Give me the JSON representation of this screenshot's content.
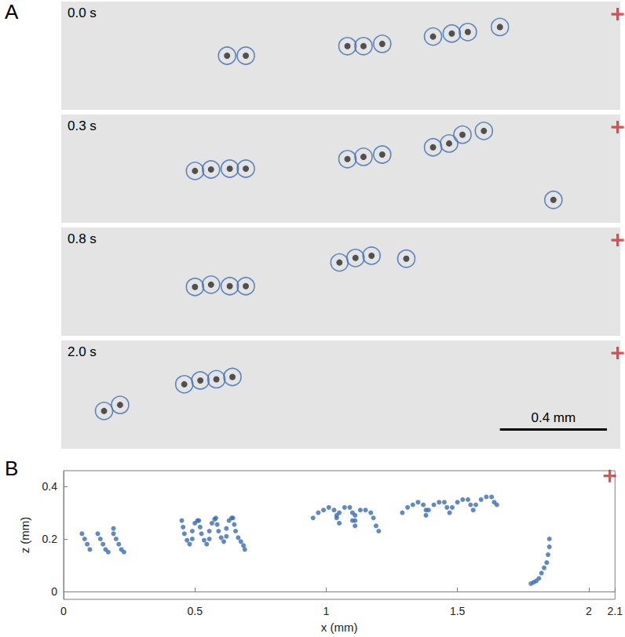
{
  "chart_data": [
    {
      "type": "scatter",
      "panel_label": "A",
      "title": "0.0 s",
      "xlim": [
        0,
        2.09
      ],
      "ylim": [
        0,
        0.43
      ],
      "tick_labels": false,
      "series": [
        {
          "color": "#3b6db3",
          "marker": "ring",
          "x": [
            0.62,
            0.69,
            1.07,
            1.13,
            1.2,
            1.39,
            1.46,
            1.52,
            1.64
          ],
          "values": [
            0.215,
            0.215,
            0.253,
            0.253,
            0.262,
            0.291,
            0.303,
            0.309,
            0.329
          ]
        },
        {
          "color": "#d62728",
          "marker": "cross",
          "x": [
            2.08
          ],
          "values": [
            0.38
          ]
        }
      ]
    },
    {
      "type": "scatter",
      "title": "0.3 s",
      "xlim": [
        0,
        2.09
      ],
      "ylim": [
        0,
        0.43
      ],
      "tick_labels": false,
      "series": [
        {
          "color": "#3b6db3",
          "marker": "ring",
          "x": [
            0.5,
            0.56,
            0.63,
            0.69,
            1.07,
            1.13,
            1.2,
            1.39,
            1.45,
            1.5,
            1.58,
            1.84
          ],
          "values": [
            0.206,
            0.212,
            0.215,
            0.215,
            0.253,
            0.262,
            0.271,
            0.3,
            0.315,
            0.35,
            0.365,
            0.091
          ]
        },
        {
          "color": "#d62728",
          "marker": "cross",
          "x": [
            2.08
          ],
          "values": [
            0.38
          ]
        }
      ]
    },
    {
      "type": "scatter",
      "title": "0.8 s",
      "xlim": [
        0,
        2.09
      ],
      "ylim": [
        0,
        0.43
      ],
      "tick_labels": false,
      "series": [
        {
          "color": "#3b6db3",
          "marker": "ring",
          "x": [
            0.5,
            0.56,
            0.63,
            0.69,
            1.04,
            1.1,
            1.16,
            1.29
          ],
          "values": [
            0.194,
            0.203,
            0.197,
            0.197,
            0.291,
            0.309,
            0.318,
            0.306
          ]
        },
        {
          "color": "#d62728",
          "marker": "cross",
          "x": [
            2.08
          ],
          "values": [
            0.38
          ]
        }
      ]
    },
    {
      "type": "scatter",
      "title": "2.0 s",
      "xlim": [
        0,
        2.09
      ],
      "ylim": [
        0,
        0.43
      ],
      "tick_labels": false,
      "scale_bar": {
        "label": "0.4 mm",
        "length": 0.4
      },
      "series": [
        {
          "color": "#3b6db3",
          "marker": "ring",
          "x": [
            0.16,
            0.22,
            0.46,
            0.52,
            0.58,
            0.64
          ],
          "values": [
            0.15,
            0.174,
            0.256,
            0.271,
            0.276,
            0.285
          ]
        },
        {
          "color": "#d62728",
          "marker": "cross",
          "x": [
            2.08
          ],
          "values": [
            0.38
          ]
        }
      ]
    },
    {
      "type": "scatter",
      "panel_label": "B",
      "xlabel": "x (mm)",
      "ylabel": "z (mm)",
      "xlim": [
        0,
        2.1
      ],
      "ylim": [
        -0.03,
        0.46
      ],
      "xticks": [
        0,
        0.5,
        1,
        1.5,
        2
      ],
      "yticks": [
        0,
        0.2,
        0.4
      ],
      "series": [
        {
          "color": "#3b6db3",
          "marker": "dot",
          "x": [
            0.07,
            0.08,
            0.09,
            0.1,
            0.13,
            0.14,
            0.15,
            0.16,
            0.17,
            0.19,
            0.19,
            0.2,
            0.21,
            0.22,
            0.23,
            0.45,
            0.455,
            0.46,
            0.47,
            0.48,
            0.49,
            0.49,
            0.5,
            0.51,
            0.515,
            0.52,
            0.525,
            0.535,
            0.545,
            0.555,
            0.555,
            0.565,
            0.575,
            0.58,
            0.585,
            0.59,
            0.6,
            0.61,
            0.62,
            0.62,
            0.63,
            0.64,
            0.645,
            0.65,
            0.655,
            0.665,
            0.675,
            0.685,
            0.69,
            0.95,
            0.97,
            0.99,
            1.01,
            1.03,
            1.04,
            1.05,
            1.04,
            1.05,
            1.07,
            1.09,
            1.1,
            1.11,
            1.11,
            1.1,
            1.11,
            1.13,
            1.15,
            1.17,
            1.18,
            1.19,
            1.2,
            1.29,
            1.31,
            1.33,
            1.35,
            1.37,
            1.38,
            1.38,
            1.39,
            1.41,
            1.43,
            1.45,
            1.46,
            1.47,
            1.48,
            1.5,
            1.52,
            1.54,
            1.55,
            1.56,
            1.57,
            1.59,
            1.61,
            1.63,
            1.64,
            1.65,
            1.85,
            1.85,
            1.845,
            1.84,
            1.83,
            1.82,
            1.81,
            1.8,
            1.79,
            1.78
          ],
          "values": [
            0.22,
            0.2,
            0.18,
            0.16,
            0.22,
            0.2,
            0.18,
            0.16,
            0.15,
            0.24,
            0.22,
            0.2,
            0.18,
            0.16,
            0.15,
            0.27,
            0.245,
            0.22,
            0.195,
            0.18,
            0.2,
            0.23,
            0.26,
            0.27,
            0.27,
            0.245,
            0.22,
            0.195,
            0.18,
            0.2,
            0.23,
            0.26,
            0.275,
            0.28,
            0.255,
            0.23,
            0.205,
            0.19,
            0.21,
            0.24,
            0.27,
            0.28,
            0.28,
            0.255,
            0.23,
            0.205,
            0.19,
            0.175,
            0.16,
            0.28,
            0.3,
            0.31,
            0.32,
            0.31,
            0.29,
            0.26,
            0.28,
            0.3,
            0.32,
            0.32,
            0.3,
            0.27,
            0.25,
            0.27,
            0.29,
            0.31,
            0.31,
            0.3,
            0.28,
            0.25,
            0.23,
            0.3,
            0.32,
            0.33,
            0.34,
            0.33,
            0.31,
            0.29,
            0.31,
            0.33,
            0.34,
            0.34,
            0.32,
            0.3,
            0.32,
            0.34,
            0.35,
            0.35,
            0.33,
            0.31,
            0.33,
            0.35,
            0.36,
            0.36,
            0.34,
            0.33,
            0.2,
            0.17,
            0.14,
            0.11,
            0.09,
            0.07,
            0.05,
            0.04,
            0.035,
            0.03
          ]
        },
        {
          "color": "#d62728",
          "marker": "cross",
          "x": [
            2.08
          ],
          "values": [
            0.44
          ]
        }
      ]
    }
  ]
}
